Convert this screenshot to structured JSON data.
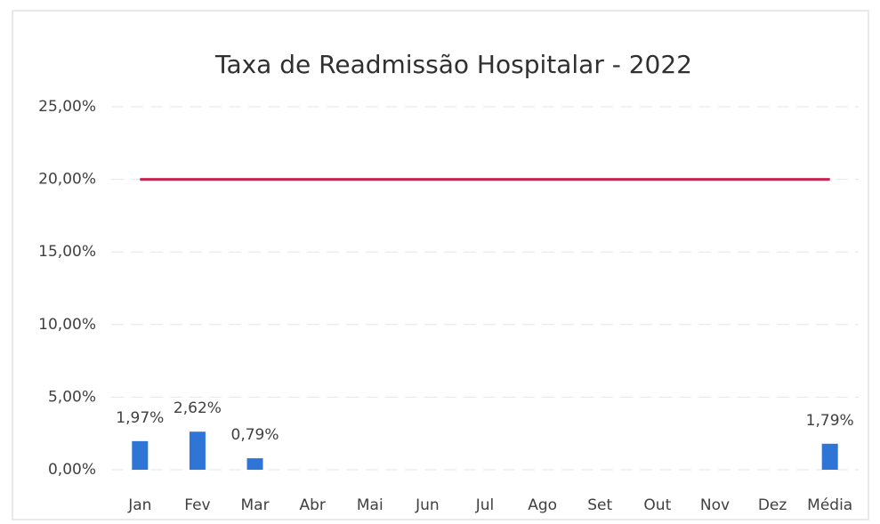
{
  "chart_data": {
    "type": "bar",
    "title": "Taxa de Readmissão Hospitalar - 2022",
    "categories": [
      "Jan",
      "Fev",
      "Mar",
      "Abr",
      "Mai",
      "Jun",
      "Jul",
      "Ago",
      "Set",
      "Out",
      "Nov",
      "Dez",
      "Média"
    ],
    "series": [
      {
        "type": "bar",
        "color": "#2e75d6",
        "values": [
          1.97,
          2.62,
          0.79,
          null,
          null,
          null,
          null,
          null,
          null,
          null,
          null,
          null,
          1.79
        ],
        "value_labels": [
          "1,97%",
          "2,62%",
          "0,79%",
          null,
          null,
          null,
          null,
          null,
          null,
          null,
          null,
          null,
          "1,79%"
        ]
      },
      {
        "type": "line",
        "color": "#c8234e",
        "values": [
          20,
          20,
          20,
          20,
          20,
          20,
          20,
          20,
          20,
          20,
          20,
          20,
          20
        ]
      }
    ],
    "ylim": [
      0,
      25
    ],
    "yticks": [
      {
        "value": 0,
        "label": "0,00%"
      },
      {
        "value": 5,
        "label": "5,00%"
      },
      {
        "value": 10,
        "label": "10,00%"
      },
      {
        "value": 15,
        "label": "15,00%"
      },
      {
        "value": 20,
        "label": "20,00%"
      },
      {
        "value": 25,
        "label": "25,00%"
      }
    ],
    "grid": true
  }
}
